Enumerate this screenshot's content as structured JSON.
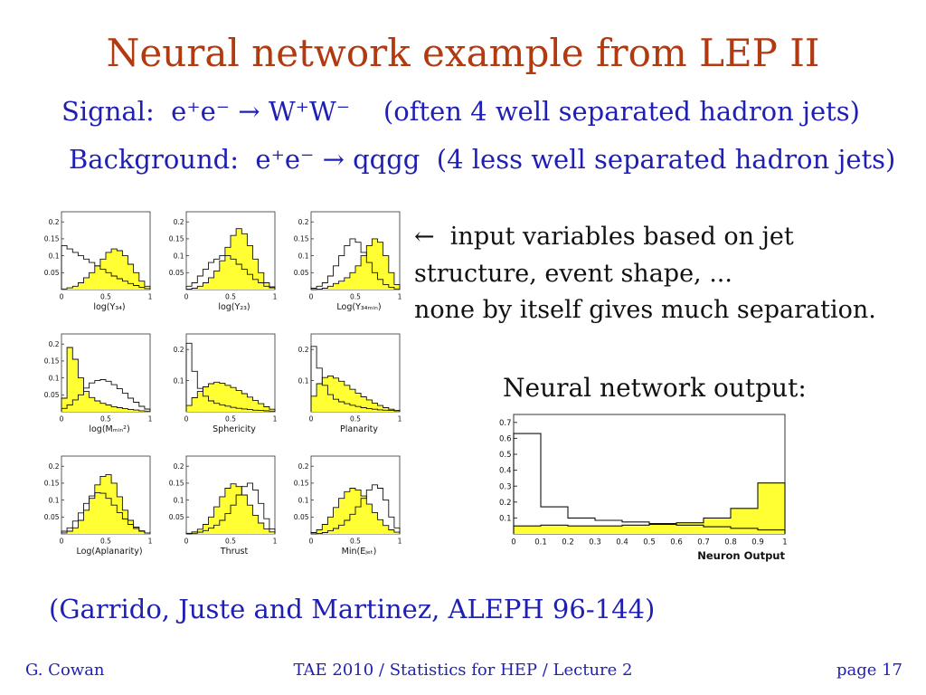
{
  "slide": {
    "title": "Neural network example from LEP II",
    "signal_line": "Signal:  e⁺e⁻ → W⁺W⁻    (often 4 well separated hadron jets)",
    "background_line": "Background:  e⁺e⁻ → qqgg  (4 less well separated hadron jets)",
    "annotation": "←  input variables based on jet\nstructure, event shape, ...\nnone by itself gives much separation.",
    "nn_output_heading": "Neural network output:",
    "citation": "(Garrido, Juste and Martinez, ALEPH 96-144)",
    "footer": {
      "author": "G. Cowan",
      "center": "TAE 2010 / Statistics for HEP / Lecture 2",
      "page": "page 17"
    }
  },
  "colors": {
    "title": "#b23a10",
    "blue": "#1f1fb4",
    "text": "#111111",
    "signal_fill": "#ffff33",
    "hist_line": "#111111",
    "axis": "#333333"
  },
  "chart_data": {
    "input_variables": {
      "type": "histogram-grid",
      "legend": {
        "signal": "yellow filled histogram (e+e- → W+W-)",
        "background": "open outline histogram (e+e- → qqgg)"
      },
      "x_range": [
        0,
        1
      ],
      "x_ticks": [
        "0",
        "0.5",
        "1"
      ],
      "panels": [
        {
          "xlabel": "log(Y₃₄)",
          "y_ticks": [
            "0.05",
            "0.1",
            "0.15",
            "0.2"
          ],
          "ymax": 0.23,
          "signal": [
            0.002,
            0.005,
            0.01,
            0.02,
            0.035,
            0.05,
            0.07,
            0.09,
            0.11,
            0.12,
            0.115,
            0.1,
            0.075,
            0.05,
            0.025,
            0.01
          ],
          "background": [
            0.13,
            0.12,
            0.11,
            0.1,
            0.09,
            0.08,
            0.07,
            0.06,
            0.05,
            0.04,
            0.032,
            0.025,
            0.018,
            0.012,
            0.007,
            0.003
          ]
        },
        {
          "xlabel": "log(Y₂₃)",
          "y_ticks": [
            "0.05",
            "0.1",
            "0.15",
            "0.2"
          ],
          "ymax": 0.23,
          "signal": [
            0.001,
            0.004,
            0.01,
            0.02,
            0.035,
            0.055,
            0.085,
            0.125,
            0.16,
            0.18,
            0.165,
            0.13,
            0.09,
            0.05,
            0.02,
            0.008
          ],
          "background": [
            0.01,
            0.02,
            0.04,
            0.06,
            0.08,
            0.09,
            0.1,
            0.1,
            0.09,
            0.075,
            0.06,
            0.045,
            0.03,
            0.02,
            0.01,
            0.005
          ]
        },
        {
          "xlabel": "Log(Y₃₄ₘᵢₙ)",
          "y_ticks": [
            "0.05",
            "0.1",
            "0.15",
            "0.2"
          ],
          "ymax": 0.23,
          "signal": [
            0,
            0.001,
            0.004,
            0.01,
            0.018,
            0.025,
            0.035,
            0.05,
            0.07,
            0.1,
            0.13,
            0.15,
            0.14,
            0.1,
            0.05,
            0.015
          ],
          "background": [
            0.004,
            0.01,
            0.02,
            0.04,
            0.07,
            0.1,
            0.13,
            0.15,
            0.14,
            0.11,
            0.08,
            0.05,
            0.03,
            0.015,
            0.007,
            0.002
          ]
        },
        {
          "xlabel": "log(Mₘᵢₙ²)",
          "y_ticks": [
            "0.05",
            "0.1",
            "0.15",
            "0.2"
          ],
          "ymax": 0.23,
          "signal": [
            0.04,
            0.19,
            0.155,
            0.1,
            0.06,
            0.042,
            0.032,
            0.025,
            0.02,
            0.015,
            0.012,
            0.009,
            0.007,
            0.005,
            0.003,
            0.002
          ],
          "background": [
            0.01,
            0.02,
            0.035,
            0.05,
            0.07,
            0.085,
            0.092,
            0.095,
            0.09,
            0.08,
            0.068,
            0.055,
            0.04,
            0.028,
            0.016,
            0.008
          ]
        },
        {
          "xlabel": "Sphericity",
          "y_ticks": [
            "0.1",
            "0.2"
          ],
          "ymax": 0.25,
          "signal": [
            0.02,
            0.045,
            0.065,
            0.08,
            0.09,
            0.095,
            0.092,
            0.085,
            0.078,
            0.068,
            0.058,
            0.047,
            0.036,
            0.026,
            0.016,
            0.008
          ],
          "background": [
            0.22,
            0.13,
            0.075,
            0.05,
            0.035,
            0.027,
            0.022,
            0.018,
            0.014,
            0.011,
            0.009,
            0.007,
            0.005,
            0.004,
            0.003,
            0.002
          ]
        },
        {
          "xlabel": "Planarity",
          "y_ticks": [
            "0.1",
            "0.2"
          ],
          "ymax": 0.25,
          "signal": [
            0.05,
            0.09,
            0.11,
            0.115,
            0.108,
            0.098,
            0.085,
            0.072,
            0.06,
            0.048,
            0.038,
            0.028,
            0.02,
            0.013,
            0.008,
            0.004
          ],
          "background": [
            0.21,
            0.14,
            0.085,
            0.055,
            0.04,
            0.032,
            0.026,
            0.021,
            0.017,
            0.013,
            0.01,
            0.008,
            0.006,
            0.005,
            0.004,
            0.003
          ]
        },
        {
          "xlabel": "Log(Aplanarity)",
          "y_ticks": [
            "0.05",
            "0.1",
            "0.15",
            "0.2"
          ],
          "ymax": 0.23,
          "signal": [
            0.003,
            0.008,
            0.018,
            0.04,
            0.07,
            0.105,
            0.145,
            0.17,
            0.175,
            0.15,
            0.11,
            0.07,
            0.04,
            0.02,
            0.009,
            0.003
          ],
          "background": [
            0.008,
            0.018,
            0.038,
            0.062,
            0.09,
            0.112,
            0.122,
            0.12,
            0.105,
            0.085,
            0.063,
            0.044,
            0.028,
            0.016,
            0.008,
            0.003
          ]
        },
        {
          "xlabel": "Thrust",
          "y_ticks": [
            "0.05",
            "0.1",
            "0.15",
            "0.2"
          ],
          "ymax": 0.23,
          "signal": [
            0.002,
            0.006,
            0.014,
            0.028,
            0.05,
            0.08,
            0.11,
            0.135,
            0.148,
            0.14,
            0.115,
            0.085,
            0.055,
            0.032,
            0.015,
            0.006
          ],
          "background": [
            0,
            0.002,
            0.005,
            0.01,
            0.017,
            0.026,
            0.04,
            0.06,
            0.085,
            0.115,
            0.14,
            0.15,
            0.13,
            0.09,
            0.045,
            0.015
          ]
        },
        {
          "xlabel": "Min(Eⱼₑₜ)",
          "y_ticks": [
            "0.05",
            "0.1",
            "0.15",
            "0.2"
          ],
          "ymax": 0.23,
          "signal": [
            0.004,
            0.012,
            0.028,
            0.05,
            0.078,
            0.105,
            0.125,
            0.135,
            0.13,
            0.112,
            0.088,
            0.063,
            0.042,
            0.025,
            0.012,
            0.005
          ],
          "background": [
            0,
            0.001,
            0.004,
            0.009,
            0.016,
            0.026,
            0.04,
            0.058,
            0.08,
            0.105,
            0.13,
            0.145,
            0.135,
            0.1,
            0.05,
            0.018
          ]
        }
      ]
    },
    "nn_output": {
      "type": "histogram",
      "xlabel": "Neuron Output",
      "x_range": [
        0,
        1
      ],
      "x_ticks": [
        "0",
        "0.1",
        "0.2",
        "0.3",
        "0.4",
        "0.5",
        "0.6",
        "0.7",
        "0.8",
        "0.9",
        "1"
      ],
      "y_ticks": [
        "0.1",
        "0.2",
        "0.3",
        "0.4",
        "0.5",
        "0.6",
        "0.7"
      ],
      "ymax": 0.75,
      "series": [
        {
          "name": "background",
          "values": [
            0.63,
            0.17,
            0.1,
            0.085,
            0.075,
            0.065,
            0.055,
            0.045,
            0.035,
            0.025
          ]
        },
        {
          "name": "signal",
          "values": [
            0.05,
            0.055,
            0.05,
            0.05,
            0.055,
            0.06,
            0.07,
            0.1,
            0.16,
            0.32
          ]
        }
      ]
    }
  }
}
